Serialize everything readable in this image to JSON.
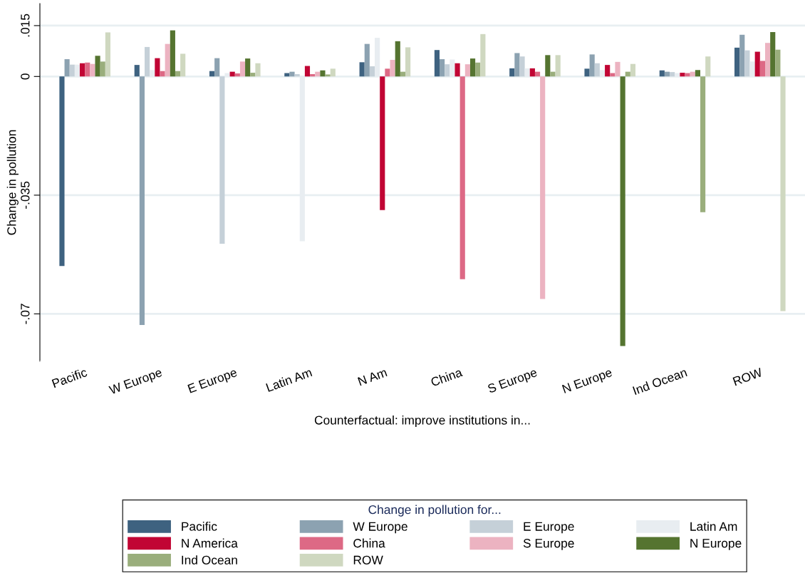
{
  "chart_data": {
    "type": "bar",
    "xlabel": "Counterfactual: improve institutions in...",
    "ylabel": "Change in pollution",
    "legend_title": "Change in pollution for...",
    "categories": [
      "Pacific",
      "W Europe",
      "E Europe",
      "Latin Am",
      "N Am",
      "China",
      "S Europe",
      "N Europe",
      "Ind Ocean",
      "ROW"
    ],
    "series": [
      {
        "name": "Pacific",
        "color": "#3e6280",
        "values": [
          -0.0559,
          0.0034,
          0.0016,
          0.001,
          0.0042,
          0.0078,
          0.0024,
          0.0023,
          0.0018,
          0.0085
        ]
      },
      {
        "name": "W Europe",
        "color": "#8ca2b1",
        "values": [
          0.0051,
          -0.0733,
          0.0054,
          0.0014,
          0.0096,
          0.0051,
          0.0069,
          0.0065,
          0.0014,
          0.0123
        ]
      },
      {
        "name": "E Europe",
        "color": "#c5d0d8",
        "values": [
          0.0035,
          0.0087,
          -0.0493,
          0.0007,
          0.003,
          0.0036,
          0.0059,
          0.0039,
          0.0013,
          0.0077
        ]
      },
      {
        "name": "Latin Am",
        "color": "#e8edf1",
        "values": [
          0.0035,
          0.0019,
          0.001,
          -0.0486,
          0.0114,
          0.005,
          0.0024,
          0.0019,
          0.001,
          0.0044
        ]
      },
      {
        "name": "N America",
        "color": "#c10534",
        "values": [
          0.0039,
          0.0054,
          0.0014,
          0.0031,
          -0.0394,
          0.0039,
          0.0024,
          0.0034,
          0.0011,
          0.0073
        ]
      },
      {
        "name": "China",
        "color": "#dd6985",
        "values": [
          0.0041,
          0.0016,
          0.0009,
          0.0007,
          0.0023,
          -0.0598,
          0.0014,
          0.001,
          0.001,
          0.0046
        ]
      },
      {
        "name": "S Europe",
        "color": "#ecb3c1",
        "values": [
          0.0037,
          0.0096,
          0.0044,
          0.0014,
          0.0049,
          0.0036,
          -0.0656,
          0.0043,
          0.0014,
          0.0099
        ]
      },
      {
        "name": "N Europe",
        "color": "#557430",
        "values": [
          0.0061,
          0.0136,
          0.0053,
          0.0018,
          0.0104,
          0.0053,
          0.0063,
          -0.0795,
          0.0019,
          0.0131
        ]
      },
      {
        "name": "Ind Ocean",
        "color": "#9aae7c",
        "values": [
          0.0044,
          0.0016,
          0.0011,
          0.0006,
          0.0014,
          0.0041,
          0.0014,
          0.0014,
          -0.04,
          0.0079
        ]
      },
      {
        "name": "ROW",
        "color": "#cfd8c0",
        "values": [
          0.013,
          0.0067,
          0.0039,
          0.0023,
          0.0086,
          0.0125,
          0.0063,
          0.0037,
          0.0059,
          -0.0692
        ]
      }
    ],
    "ylim": [
      -0.084,
      0.0215
    ],
    "yticks": [
      {
        "value": 0.015,
        "label": ".015"
      },
      {
        "value": 0,
        "label": "0"
      },
      {
        "value": -0.035,
        "label": "-.035"
      },
      {
        "value": -0.07,
        "label": "-.07"
      }
    ],
    "grid": "y",
    "legend": "bottom"
  }
}
